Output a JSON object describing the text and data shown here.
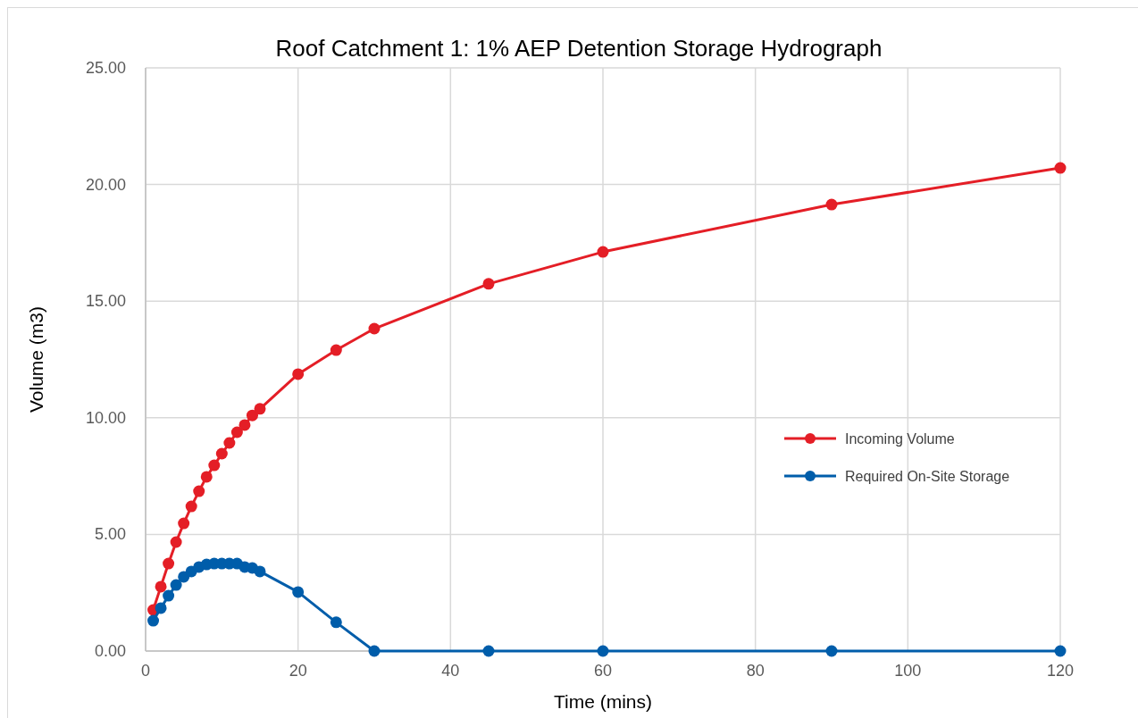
{
  "chart_data": {
    "type": "line",
    "title": "Roof Catchment 1: 1% AEP  Detention Storage Hydrograph",
    "xlabel": "Time (mins)",
    "ylabel": "Volume (m3)",
    "x": [
      1,
      2,
      3,
      4,
      5,
      6,
      7,
      8,
      9,
      10,
      11,
      12,
      13,
      14,
      15,
      20,
      25,
      30,
      45,
      60,
      90,
      120
    ],
    "series": [
      {
        "name": "Incoming Volume",
        "color": "#e41e26",
        "values": [
          1.76,
          2.76,
          3.75,
          4.67,
          5.47,
          6.2,
          6.85,
          7.47,
          7.96,
          8.46,
          8.92,
          9.38,
          9.69,
          10.1,
          10.38,
          11.87,
          12.9,
          13.82,
          15.74,
          17.11,
          19.14,
          20.71
        ]
      },
      {
        "name": "Required On-Site Storage",
        "color": "#005daa",
        "values": [
          1.3,
          1.84,
          2.37,
          2.83,
          3.18,
          3.41,
          3.6,
          3.71,
          3.75,
          3.75,
          3.75,
          3.75,
          3.6,
          3.56,
          3.41,
          2.53,
          1.23,
          0,
          0,
          0,
          0,
          0
        ]
      }
    ],
    "xlim": [
      0,
      120
    ],
    "xticks": [
      0,
      20,
      40,
      60,
      80,
      100,
      120
    ],
    "ylim": [
      0,
      25
    ],
    "yticks": [
      {
        "value": 0,
        "label": "0.00"
      },
      {
        "value": 5,
        "label": "5.00"
      },
      {
        "value": 10,
        "label": "10.00"
      },
      {
        "value": 15,
        "label": "15.00"
      },
      {
        "value": 20,
        "label": "20.00"
      },
      {
        "value": 25,
        "label": "25.00"
      }
    ],
    "grid": true,
    "legend": "right",
    "marker": "circle",
    "line_style": "solid"
  }
}
